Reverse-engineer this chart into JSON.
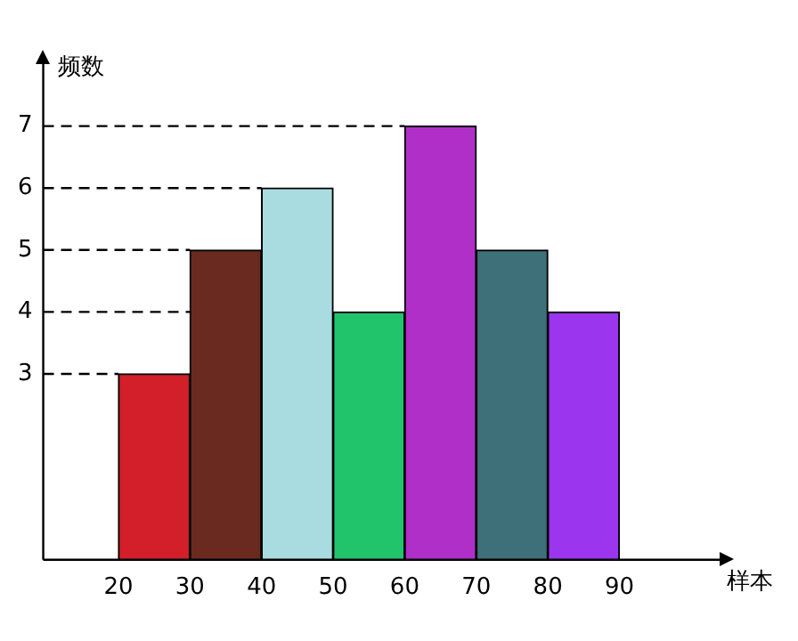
{
  "chart_data": {
    "type": "histogram",
    "xlabel": "样本",
    "ylabel": "频数",
    "bins": [
      20,
      30,
      40,
      50,
      60,
      70,
      80,
      90
    ],
    "values": [
      3,
      5,
      6,
      4,
      7,
      5,
      4
    ],
    "colors": [
      "#d21f2a",
      "#6b2a1f",
      "#a9dce0",
      "#22c46b",
      "#b12fc9",
      "#3e7079",
      "#9b35ee"
    ],
    "xlim": [
      9.5,
      104
    ],
    "ylim": [
      0,
      8
    ],
    "xticks": [
      20,
      30,
      40,
      50,
      60,
      70,
      80,
      90
    ],
    "yticks": [
      3,
      4,
      5,
      6,
      7
    ],
    "ref_lines": [
      {
        "axis": "y",
        "value": 3,
        "color": "#000000",
        "line_style": "dashed"
      },
      {
        "axis": "y",
        "value": 4,
        "color": "#000000",
        "line_style": "dashed"
      },
      {
        "axis": "y",
        "value": 5,
        "color": "#000000",
        "line_style": "dashed"
      },
      {
        "axis": "y",
        "value": 6,
        "color": "#000000",
        "line_style": "dashed"
      },
      {
        "axis": "y",
        "value": 7,
        "color": "#000000",
        "line_style": "dashed"
      }
    ],
    "grid": false,
    "legend": false
  }
}
